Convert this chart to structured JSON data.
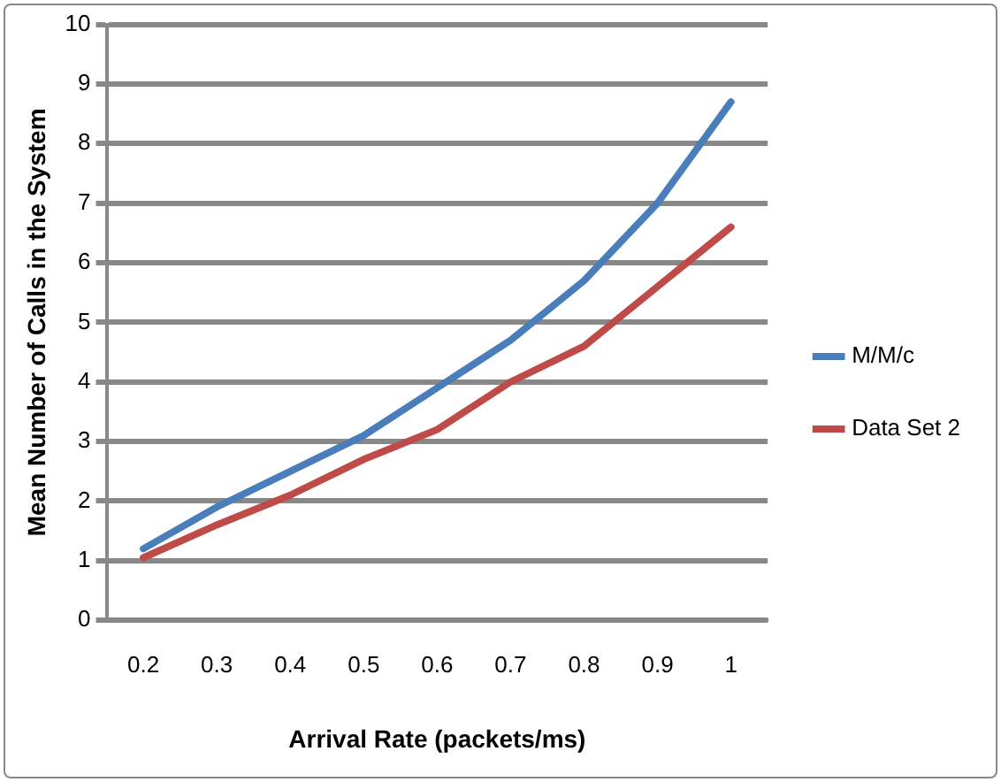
{
  "chart_data": {
    "type": "line",
    "xlabel": "Arrival Rate (packets/ms)",
    "ylabel": "Mean Number of Calls in the System",
    "categories": [
      "0.2",
      "0.3",
      "0.4",
      "0.5",
      "0.6",
      "0.7",
      "0.8",
      "0.9",
      "1"
    ],
    "series": [
      {
        "name": "M/M/c",
        "color": "#4a7ebb",
        "values": [
          1.2,
          1.9,
          2.5,
          3.1,
          3.9,
          4.7,
          5.7,
          7.0,
          8.7
        ]
      },
      {
        "name": "Data Set 2",
        "color": "#be4b48",
        "values": [
          1.05,
          1.6,
          2.1,
          2.7,
          3.2,
          4.0,
          4.6,
          5.6,
          6.6
        ]
      }
    ],
    "ylim": [
      0,
      10
    ],
    "yticks": [
      0,
      1,
      2,
      3,
      4,
      5,
      6,
      7,
      8,
      9,
      10
    ],
    "grid": "y",
    "legend": "right",
    "marker": "none",
    "line_style": "solid"
  }
}
